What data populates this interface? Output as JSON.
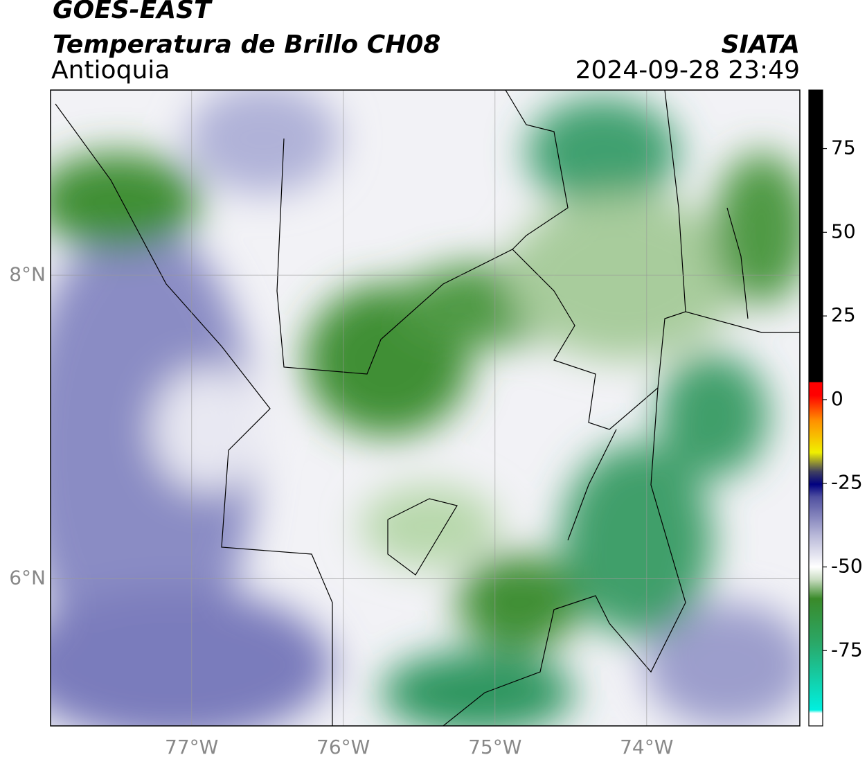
{
  "header": {
    "title": "GOES-EAST",
    "subtitle": "Temperatura de Brillo CH08",
    "region": "Antioquia",
    "source": "SIATA",
    "timestamp": "2024-09-28 23:49"
  },
  "map": {
    "lon_range": [
      -77.93,
      -72.99
    ],
    "lat_range": [
      5.03,
      9.22
    ],
    "xticks": [
      {
        "value": -77,
        "label": "77°W"
      },
      {
        "value": -76,
        "label": "76°W"
      },
      {
        "value": -75,
        "label": "75°W"
      },
      {
        "value": -74,
        "label": "74°W"
      }
    ],
    "yticks": [
      {
        "value": 8,
        "label": "8°N"
      },
      {
        "value": 6,
        "label": "6°N"
      }
    ]
  },
  "colorbar": {
    "lim": [
      -97.5,
      92.5
    ],
    "ticks": [
      75,
      50,
      25,
      0,
      -25,
      -50,
      -75
    ]
  }
}
